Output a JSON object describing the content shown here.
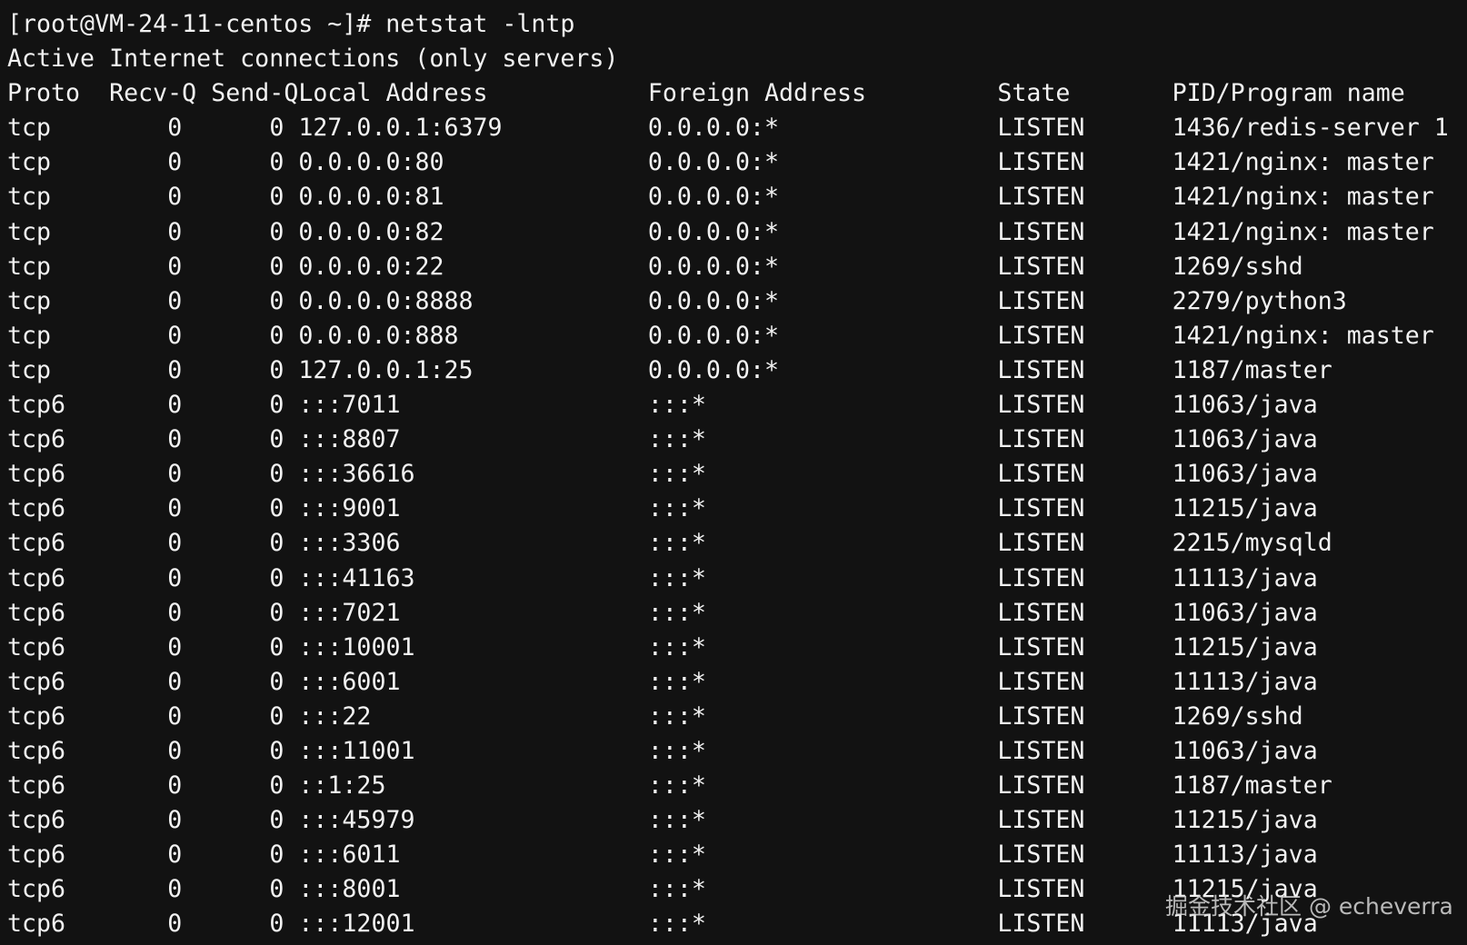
{
  "prompt": "[root@VM-24-11-centos ~]# netstat -lntp",
  "summary": "Active Internet connections (only servers)",
  "headers": [
    "Proto",
    "Recv-Q",
    "Send-Q",
    "Local Address",
    "Foreign Address",
    "State",
    "PID/Program name"
  ],
  "rows": [
    [
      "tcp",
      "0",
      "0",
      "127.0.0.1:6379",
      "0.0.0.0:*",
      "LISTEN",
      "1436/redis-server 1"
    ],
    [
      "tcp",
      "0",
      "0",
      "0.0.0.0:80",
      "0.0.0.0:*",
      "LISTEN",
      "1421/nginx: master"
    ],
    [
      "tcp",
      "0",
      "0",
      "0.0.0.0:81",
      "0.0.0.0:*",
      "LISTEN",
      "1421/nginx: master"
    ],
    [
      "tcp",
      "0",
      "0",
      "0.0.0.0:82",
      "0.0.0.0:*",
      "LISTEN",
      "1421/nginx: master"
    ],
    [
      "tcp",
      "0",
      "0",
      "0.0.0.0:22",
      "0.0.0.0:*",
      "LISTEN",
      "1269/sshd"
    ],
    [
      "tcp",
      "0",
      "0",
      "0.0.0.0:8888",
      "0.0.0.0:*",
      "LISTEN",
      "2279/python3"
    ],
    [
      "tcp",
      "0",
      "0",
      "0.0.0.0:888",
      "0.0.0.0:*",
      "LISTEN",
      "1421/nginx: master"
    ],
    [
      "tcp",
      "0",
      "0",
      "127.0.0.1:25",
      "0.0.0.0:*",
      "LISTEN",
      "1187/master"
    ],
    [
      "tcp6",
      "0",
      "0",
      ":::7011",
      ":::*",
      "LISTEN",
      "11063/java"
    ],
    [
      "tcp6",
      "0",
      "0",
      ":::8807",
      ":::*",
      "LISTEN",
      "11063/java"
    ],
    [
      "tcp6",
      "0",
      "0",
      ":::36616",
      ":::*",
      "LISTEN",
      "11063/java"
    ],
    [
      "tcp6",
      "0",
      "0",
      ":::9001",
      ":::*",
      "LISTEN",
      "11215/java"
    ],
    [
      "tcp6",
      "0",
      "0",
      ":::3306",
      ":::*",
      "LISTEN",
      "2215/mysqld"
    ],
    [
      "tcp6",
      "0",
      "0",
      ":::41163",
      ":::*",
      "LISTEN",
      "11113/java"
    ],
    [
      "tcp6",
      "0",
      "0",
      ":::7021",
      ":::*",
      "LISTEN",
      "11063/java"
    ],
    [
      "tcp6",
      "0",
      "0",
      ":::10001",
      ":::*",
      "LISTEN",
      "11215/java"
    ],
    [
      "tcp6",
      "0",
      "0",
      ":::6001",
      ":::*",
      "LISTEN",
      "11113/java"
    ],
    [
      "tcp6",
      "0",
      "0",
      ":::22",
      ":::*",
      "LISTEN",
      "1269/sshd"
    ],
    [
      "tcp6",
      "0",
      "0",
      ":::11001",
      ":::*",
      "LISTEN",
      "11063/java"
    ],
    [
      "tcp6",
      "0",
      "0",
      "::1:25",
      ":::*",
      "LISTEN",
      "1187/master"
    ],
    [
      "tcp6",
      "0",
      "0",
      ":::45979",
      ":::*",
      "LISTEN",
      "11215/java"
    ],
    [
      "tcp6",
      "0",
      "0",
      ":::6011",
      ":::*",
      "LISTEN",
      "11113/java"
    ],
    [
      "tcp6",
      "0",
      "0",
      ":::8001",
      ":::*",
      "LISTEN",
      "11215/java"
    ],
    [
      "tcp6",
      "0",
      "0",
      ":::12001",
      ":::*",
      "LISTEN",
      "11113/java"
    ]
  ],
  "watermark": "掘金技术社区 @ echeverra",
  "colors": {
    "background": "#121212",
    "text": "#f2f2f2"
  }
}
